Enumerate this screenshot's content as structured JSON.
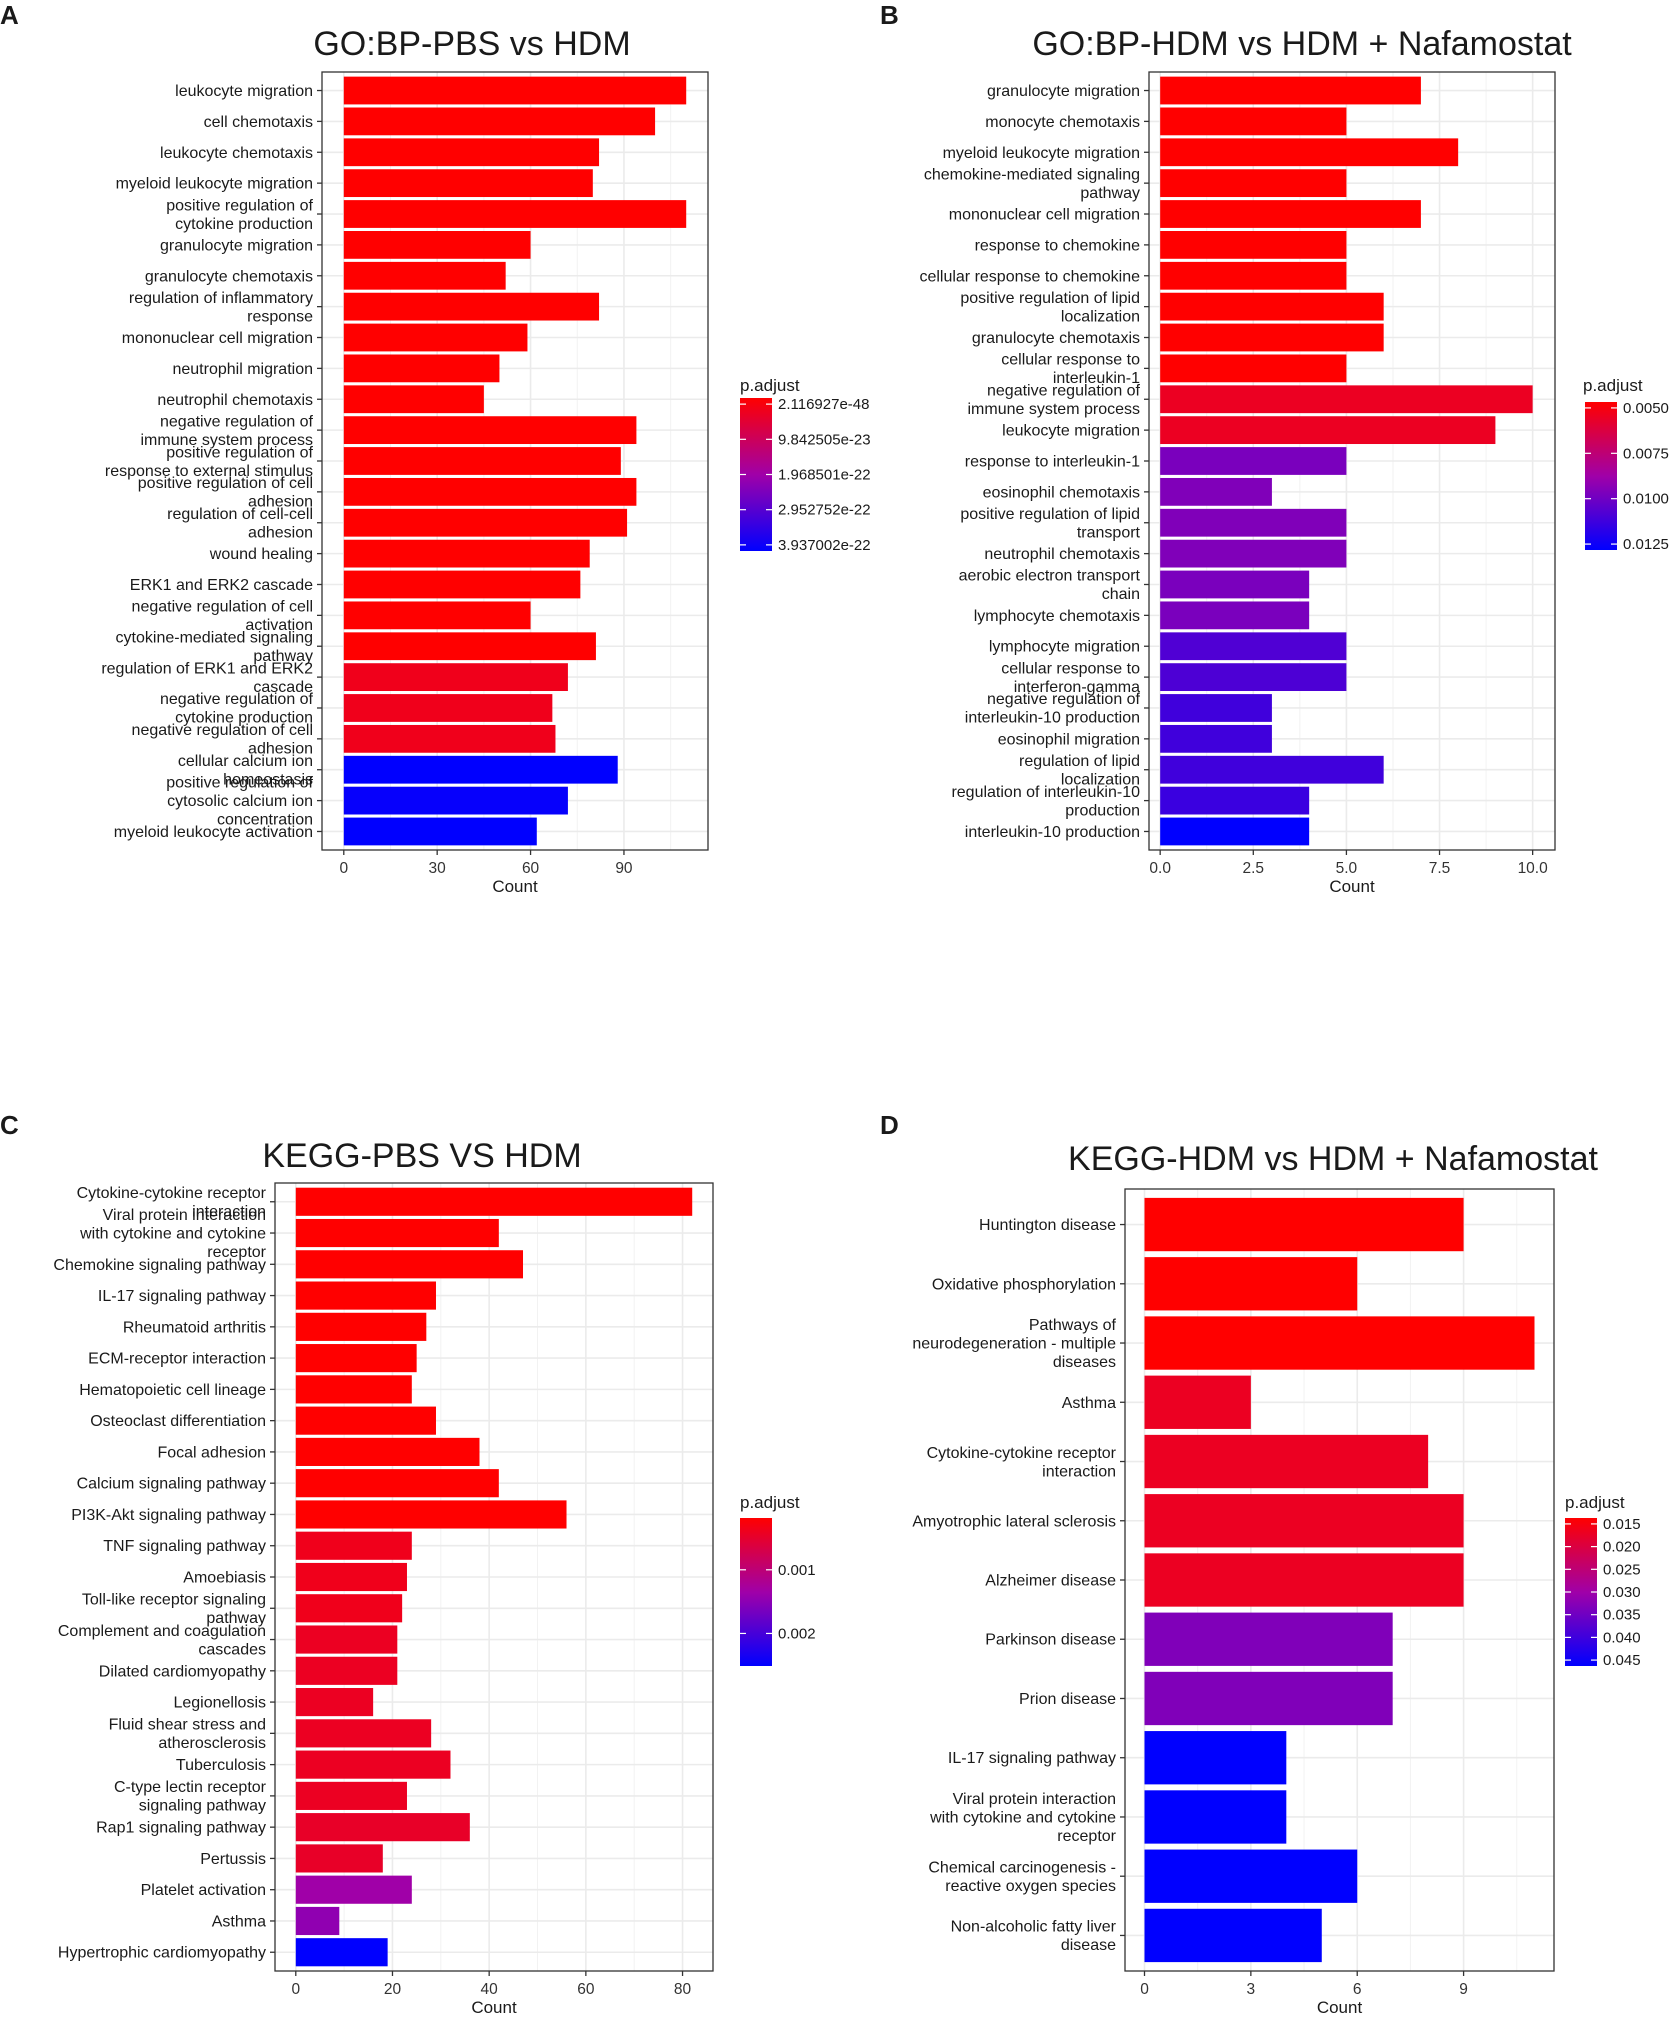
{
  "colors": {
    "low": "#FF0000",
    "high": "#0000FF",
    "grid": "#EBEBEB",
    "frame": "#333333"
  },
  "chart_data": [
    {
      "panel": "A",
      "type": "bar",
      "title": "GO:BP-PBS vs HDM",
      "xlabel": "Count",
      "ylabel": "",
      "xlim": [
        -7,
        117
      ],
      "xticks": [
        0,
        30,
        60,
        90
      ],
      "xtick_labels": [
        "0",
        "30",
        "60",
        "90"
      ],
      "legend": {
        "title": "p.adjust",
        "position": "right",
        "labels": [
          "2.116927e-48",
          "9.842505e-23",
          "1.968501e-22",
          "2.952752e-22",
          "3.937002e-22"
        ]
      },
      "categories": [
        [
          "leukocyte migration"
        ],
        [
          "cell chemotaxis"
        ],
        [
          "leukocyte chemotaxis"
        ],
        [
          "myeloid leukocyte migration"
        ],
        [
          "positive regulation of",
          "cytokine production"
        ],
        [
          "granulocyte migration"
        ],
        [
          "granulocyte chemotaxis"
        ],
        [
          "regulation of inflammatory",
          "response"
        ],
        [
          "mononuclear cell migration"
        ],
        [
          "neutrophil migration"
        ],
        [
          "neutrophil chemotaxis"
        ],
        [
          "negative regulation of",
          "immune system process"
        ],
        [
          "positive regulation of",
          "response to external stimulus"
        ],
        [
          "positive regulation of cell",
          "adhesion"
        ],
        [
          "regulation of cell-cell",
          "adhesion"
        ],
        [
          "wound healing"
        ],
        [
          "ERK1 and ERK2 cascade"
        ],
        [
          "negative regulation of cell",
          "activation"
        ],
        [
          "cytokine-mediated signaling",
          "pathway"
        ],
        [
          "regulation of ERK1 and ERK2",
          "cascade"
        ],
        [
          "negative regulation of",
          "cytokine production"
        ],
        [
          "negative regulation of cell",
          "adhesion"
        ],
        [
          "cellular calcium ion",
          "homeostasis"
        ],
        [
          "positive regulation of",
          "cytosolic calcium ion",
          "concentration"
        ],
        [
          "myeloid leukocyte activation"
        ]
      ],
      "values": [
        110,
        100,
        82,
        80,
        110,
        60,
        52,
        82,
        59,
        50,
        45,
        94,
        89,
        94,
        91,
        79,
        76,
        60,
        81,
        72,
        67,
        68,
        88,
        72,
        62
      ],
      "p_adjust": [
        0,
        0,
        0,
        0,
        0,
        0,
        0,
        0,
        0,
        0,
        0,
        0,
        0,
        0,
        0,
        0,
        0,
        0,
        0,
        0.08,
        0.08,
        0.08,
        1,
        0.98,
        1
      ]
    },
    {
      "panel": "B",
      "type": "bar",
      "title": "GO:BP-HDM vs HDM + Nafamostat",
      "xlabel": "Count",
      "ylabel": "",
      "xlim": [
        -0.3,
        10.6
      ],
      "xticks": [
        0,
        2.5,
        5,
        7.5,
        10
      ],
      "xtick_labels": [
        "0.0",
        "2.5",
        "5.0",
        "7.5",
        "10.0"
      ],
      "legend": {
        "title": "p.adjust",
        "position": "right",
        "labels": [
          "0.0050",
          "0.0075",
          "0.0100",
          "0.0125"
        ]
      },
      "categories": [
        [
          "granulocyte migration"
        ],
        [
          "monocyte chemotaxis"
        ],
        [
          "myeloid leukocyte migration"
        ],
        [
          "chemokine-mediated signaling",
          "pathway"
        ],
        [
          "mononuclear cell migration"
        ],
        [
          "response to chemokine"
        ],
        [
          "cellular response to chemokine"
        ],
        [
          "positive regulation of lipid",
          "localization"
        ],
        [
          "granulocyte chemotaxis"
        ],
        [
          "cellular response to",
          "interleukin-1"
        ],
        [
          "negative regulation of",
          "immune system process"
        ],
        [
          "leukocyte migration"
        ],
        [
          "response to interleukin-1"
        ],
        [
          "eosinophil chemotaxis"
        ],
        [
          "positive regulation of lipid",
          "transport"
        ],
        [
          "neutrophil chemotaxis"
        ],
        [
          "aerobic electron transport",
          "chain"
        ],
        [
          "lymphocyte chemotaxis"
        ],
        [
          "lymphocyte migration"
        ],
        [
          "cellular response to",
          "interferon-gamma"
        ],
        [
          "negative regulation of",
          "interleukin-10 production"
        ],
        [
          "eosinophil migration"
        ],
        [
          "regulation of lipid",
          "localization"
        ],
        [
          "regulation of interleukin-10",
          "production"
        ],
        [
          "interleukin-10 production"
        ]
      ],
      "values": [
        7,
        5,
        8,
        5,
        7,
        5,
        5,
        6,
        6,
        5,
        10,
        9,
        5,
        3,
        5,
        5,
        4,
        4,
        5,
        5,
        3,
        3,
        6,
        4,
        4
      ],
      "p_adjust": [
        0,
        0,
        0,
        0,
        0,
        0,
        0,
        0,
        0,
        0,
        0.1,
        0.1,
        0.62,
        0.6,
        0.6,
        0.6,
        0.62,
        0.62,
        0.75,
        0.76,
        0.8,
        0.8,
        0.8,
        0.82,
        1
      ]
    },
    {
      "panel": "C",
      "type": "bar",
      "title": "KEGG-PBS VS HDM",
      "xlabel": "Count",
      "ylabel": "",
      "xlim": [
        -4.3,
        86.3
      ],
      "xticks": [
        0,
        20,
        40,
        60,
        80
      ],
      "xtick_labels": [
        "0",
        "20",
        "40",
        "60",
        "80"
      ],
      "legend": {
        "title": "p.adjust",
        "position": "right",
        "labels": [
          "0.001",
          "0.002"
        ]
      },
      "categories": [
        [
          "Cytokine-cytokine receptor",
          "interaction"
        ],
        [
          "Viral protein interaction",
          "with cytokine and cytokine",
          "receptor"
        ],
        [
          "Chemokine signaling pathway"
        ],
        [
          "IL-17 signaling pathway"
        ],
        [
          "Rheumatoid arthritis"
        ],
        [
          "ECM-receptor interaction"
        ],
        [
          "Hematopoietic cell lineage"
        ],
        [
          "Osteoclast differentiation"
        ],
        [
          "Focal adhesion"
        ],
        [
          "Calcium signaling pathway"
        ],
        [
          "PI3K-Akt signaling pathway"
        ],
        [
          "TNF signaling pathway"
        ],
        [
          "Amoebiasis"
        ],
        [
          "Toll-like receptor signaling",
          "pathway"
        ],
        [
          "Complement and coagulation",
          "cascades"
        ],
        [
          "Dilated cardiomyopathy"
        ],
        [
          "Legionellosis"
        ],
        [
          "Fluid shear stress and",
          "atherosclerosis"
        ],
        [
          "Tuberculosis"
        ],
        [
          "C-type lectin receptor",
          "signaling pathway"
        ],
        [
          "Rap1 signaling pathway"
        ],
        [
          "Pertussis"
        ],
        [
          "Platelet activation"
        ],
        [
          "Asthma"
        ],
        [
          "Hypertrophic cardiomyopathy"
        ]
      ],
      "values": [
        82,
        42,
        47,
        29,
        27,
        25,
        24,
        29,
        38,
        42,
        56,
        24,
        23,
        22,
        21,
        21,
        16,
        28,
        32,
        23,
        36,
        18,
        24,
        9,
        19
      ],
      "p_adjust": [
        0,
        0,
        0,
        0,
        0,
        0,
        0,
        0,
        0,
        0,
        0,
        0.08,
        0.08,
        0.08,
        0.1,
        0.1,
        0.1,
        0.1,
        0.1,
        0.1,
        0.12,
        0.12,
        0.5,
        0.55,
        1
      ]
    },
    {
      "panel": "D",
      "type": "bar",
      "title": "KEGG-HDM vs HDM + Nafamostat",
      "xlabel": "Count",
      "ylabel": "",
      "xlim": [
        -0.55,
        11.55
      ],
      "xticks": [
        0,
        3,
        6,
        9
      ],
      "xtick_labels": [
        "0",
        "3",
        "6",
        "9"
      ],
      "legend": {
        "title": "p.adjust",
        "position": "right",
        "labels": [
          "0.015",
          "0.020",
          "0.025",
          "0.030",
          "0.035",
          "0.040",
          "0.045"
        ]
      },
      "categories": [
        [
          "Huntington disease"
        ],
        [
          "Oxidative phosphorylation"
        ],
        [
          "Pathways of",
          "neurodegeneration - multiple",
          "diseases"
        ],
        [
          "Asthma"
        ],
        [
          "Cytokine-cytokine receptor",
          "interaction"
        ],
        [
          "Amyotrophic lateral sclerosis"
        ],
        [
          "Alzheimer disease"
        ],
        [
          "Parkinson disease"
        ],
        [
          "Prion disease"
        ],
        [
          "IL-17 signaling pathway"
        ],
        [
          "Viral protein interaction",
          "with cytokine and cytokine",
          "receptor"
        ],
        [
          "Chemical carcinogenesis -",
          "reactive oxygen species"
        ],
        [
          "Non-alcoholic fatty liver",
          "disease"
        ]
      ],
      "values": [
        9,
        6,
        11,
        3,
        8,
        9,
        9,
        7,
        7,
        4,
        4,
        6,
        5
      ],
      "p_adjust": [
        0,
        0,
        0,
        0.1,
        0.1,
        0.1,
        0.1,
        0.6,
        0.6,
        1,
        1,
        1,
        1
      ]
    }
  ]
}
